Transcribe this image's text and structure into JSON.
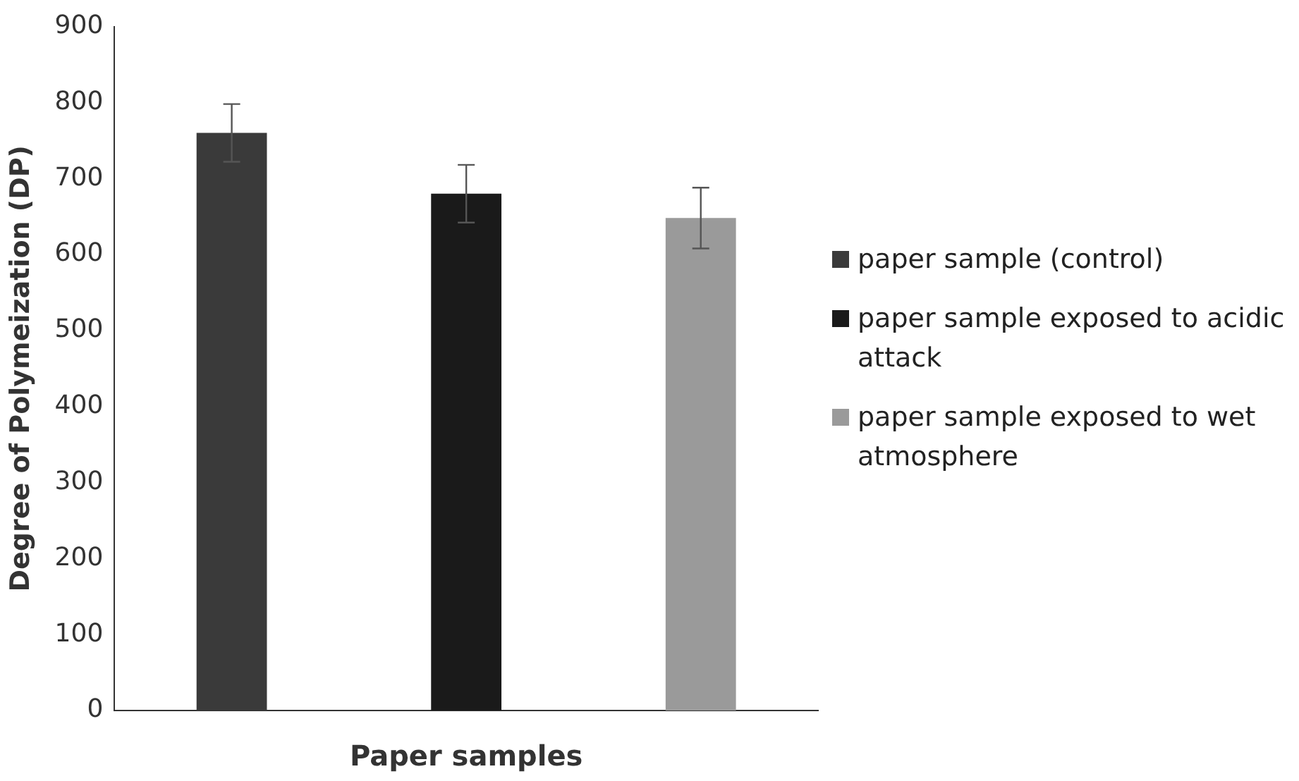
{
  "chart_data": {
    "type": "bar",
    "xlabel": "Paper samples",
    "ylabel": "Degree of Polymeization (DP)",
    "categories": [
      null
    ],
    "series": [
      {
        "name": "paper sample (control)",
        "color": "#3a3a3a",
        "values": [
          760
        ],
        "errors": [
          38
        ]
      },
      {
        "name": "paper sample exposed to acidic attack",
        "color": "#1a1a1a",
        "values": [
          680
        ],
        "errors": [
          38
        ]
      },
      {
        "name": "paper sample exposed to wet atmosphere",
        "color": "#9a9a9a",
        "values": [
          648
        ],
        "errors": [
          40
        ]
      }
    ],
    "ylim": [
      0,
      900
    ],
    "yticks": [
      0,
      100,
      200,
      300,
      400,
      500,
      600,
      700,
      800,
      900
    ],
    "grid": false,
    "legend": "right"
  }
}
